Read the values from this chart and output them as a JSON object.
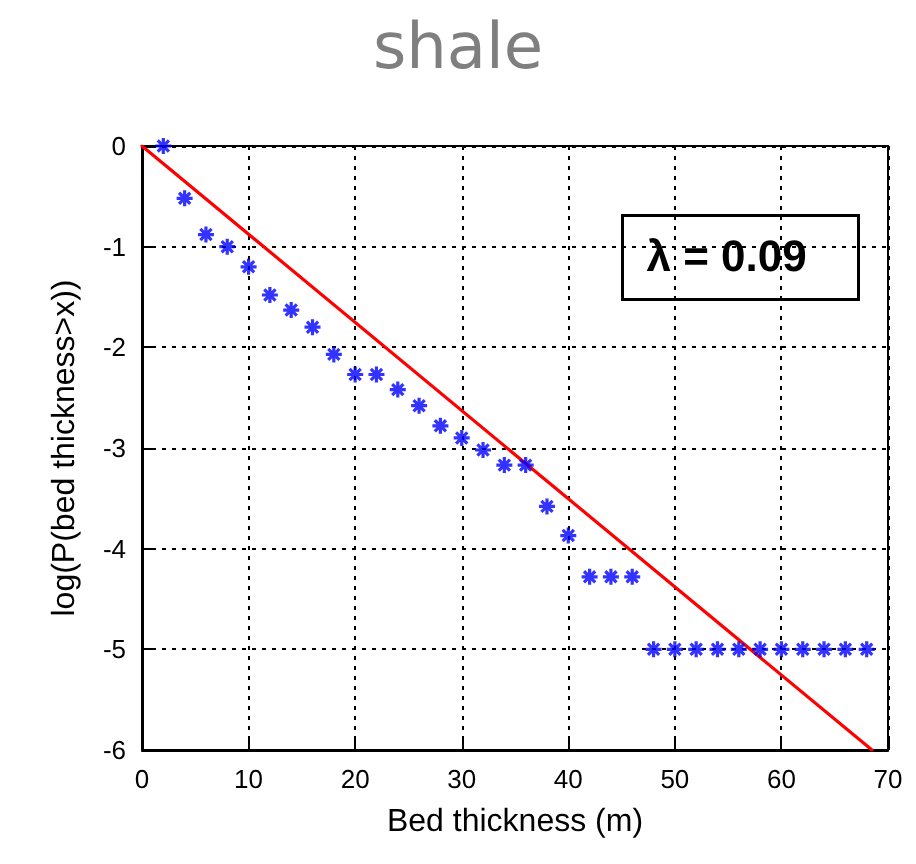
{
  "chart_data": {
    "type": "scatter",
    "title": "shale",
    "xlabel": "Bed thickness (m)",
    "ylabel": "log(P(bed thickness>x))",
    "annotations": [
      "λ = 0.09"
    ],
    "series": [
      {
        "color": "#0000ff",
        "marker": "cross",
        "x": [
          2,
          4,
          6,
          8,
          10,
          12,
          14,
          16,
          18,
          20,
          22,
          24,
          26,
          28,
          30,
          32,
          34,
          36,
          38,
          40,
          42,
          44,
          46,
          48,
          50,
          52,
          54,
          56,
          58,
          60,
          62,
          64,
          66,
          68
        ],
        "values": [
          0,
          -0.52,
          -0.88,
          -1.0,
          -1.2,
          -1.48,
          -1.63,
          -1.8,
          -2.07,
          -2.27,
          -2.27,
          -2.42,
          -2.58,
          -2.78,
          -2.9,
          -3.02,
          -3.17,
          -3.17,
          -3.58,
          -3.87,
          -4.28,
          -4.28,
          -4.28,
          -5,
          -5,
          -5,
          -5,
          -5,
          -5,
          -5,
          -5,
          -5,
          -5,
          -5
        ]
      },
      {
        "type": "line",
        "color": "#ff0000",
        "marker": "none",
        "line_style": "solid",
        "x": [
          0,
          68.5
        ],
        "values": [
          0,
          -6
        ]
      }
    ],
    "xlim": [
      0,
      70
    ],
    "xticks": [
      0,
      10,
      20,
      30,
      40,
      50,
      60,
      70
    ],
    "ylim": [
      -6,
      0
    ],
    "yticks": [
      -6,
      -5,
      -4,
      -3,
      -2,
      -1,
      0
    ],
    "grid": true
  }
}
